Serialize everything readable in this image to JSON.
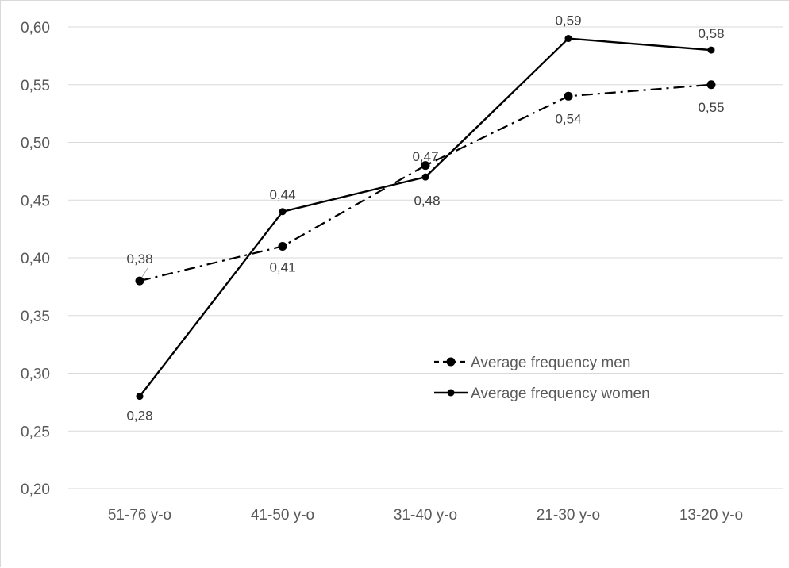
{
  "chart_data": {
    "type": "line",
    "categories": [
      "51-76 y-o",
      "41-50 y-o",
      "31-40 y-o",
      "21-30 y-o",
      "13-20 y-o"
    ],
    "series": [
      {
        "name": "Average frequency men",
        "values": [
          0.38,
          0.41,
          0.48,
          0.54,
          0.55
        ],
        "labels": [
          "0,38",
          "0,41",
          "0,48",
          "0,54",
          "0,55"
        ],
        "line_style": "dash-dot",
        "color": "#000000"
      },
      {
        "name": "Average frequency women",
        "values": [
          0.28,
          0.44,
          0.47,
          0.59,
          0.58
        ],
        "labels": [
          "0,28",
          "0,44",
          "0,47",
          "0,59",
          "0,58"
        ],
        "line_style": "solid",
        "color": "#000000"
      }
    ],
    "y_ticks": [
      "0,20",
      "0,25",
      "0,30",
      "0,35",
      "0,40",
      "0,45",
      "0,50",
      "0,55",
      "0,60"
    ],
    "ylim": [
      0.2,
      0.6
    ],
    "grid": "horizontal",
    "gridline_color": "#d9d9d9",
    "legend_position": "inside-lower-right"
  }
}
